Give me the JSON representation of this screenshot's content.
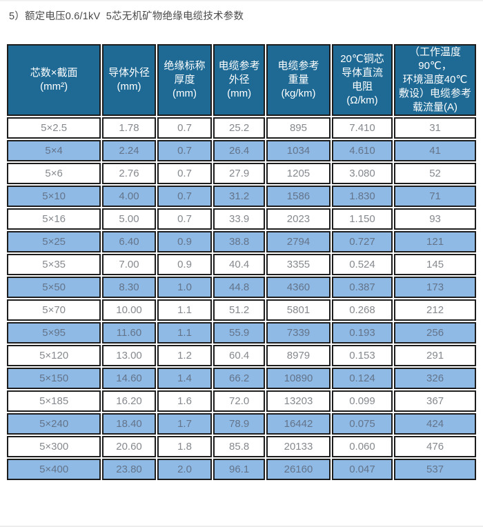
{
  "page": {
    "title": "5）额定电压0.6/1kV  5芯无机矿物绝缘电缆技术参数"
  },
  "table": {
    "columns": [
      {
        "id": "core-size",
        "label": "芯数×截面\n(mm²)"
      },
      {
        "id": "conductor-od",
        "label": "导体外径\n(mm)"
      },
      {
        "id": "insulation-thickness",
        "label": "绝缘标称\n厚度\n(mm)"
      },
      {
        "id": "cable-od",
        "label": "电缆参考\n外径\n(mm)"
      },
      {
        "id": "cable-weight",
        "label": "电缆参考\n重量\n(kg/km)"
      },
      {
        "id": "dc-resistance",
        "label": "20℃铜芯\n导体直流\n电阻\n(Ω/km)"
      },
      {
        "id": "ampacity",
        "label": "（工作温度90℃，\n环境温度40℃\n敷设）电缆参考\n载流量(A)"
      }
    ],
    "rows": [
      [
        "5×2.5",
        "1.78",
        "0.7",
        "25.2",
        "895",
        "7.410",
        "31"
      ],
      [
        "5×4",
        "2.24",
        "0.7",
        "26.4",
        "1034",
        "4.610",
        "41"
      ],
      [
        "5×6",
        "2.76",
        "0.7",
        "27.9",
        "1205",
        "3.080",
        "52"
      ],
      [
        "5×10",
        "4.00",
        "0.7",
        "31.2",
        "1586",
        "1.830",
        "71"
      ],
      [
        "5×16",
        "5.00",
        "0.7",
        "33.9",
        "2023",
        "1.150",
        "93"
      ],
      [
        "5×25",
        "6.40",
        "0.9",
        "38.8",
        "2794",
        "0.727",
        "121"
      ],
      [
        "5×35",
        "7.00",
        "0.9",
        "40.4",
        "3355",
        "0.524",
        "145"
      ],
      [
        "5×50",
        "8.30",
        "1.0",
        "44.8",
        "4360",
        "0.387",
        "173"
      ],
      [
        "5×70",
        "10.00",
        "1.1",
        "51.2",
        "5801",
        "0.268",
        "212"
      ],
      [
        "5×95",
        "11.60",
        "1.1",
        "55.9",
        "7339",
        "0.193",
        "256"
      ],
      [
        "5×120",
        "13.00",
        "1.2",
        "60.4",
        "8979",
        "0.153",
        "291"
      ],
      [
        "5×150",
        "14.60",
        "1.4",
        "66.2",
        "10890",
        "0.124",
        "326"
      ],
      [
        "5×185",
        "16.20",
        "1.6",
        "72.0",
        "13203",
        "0.099",
        "367"
      ],
      [
        "5×240",
        "18.40",
        "1.7",
        "78.9",
        "16442",
        "0.075",
        "424"
      ],
      [
        "5×300",
        "20.60",
        "1.8",
        "85.8",
        "20133",
        "0.060",
        "476"
      ],
      [
        "5×400",
        "23.80",
        "2.0",
        "96.1",
        "26160",
        "0.047",
        "537"
      ]
    ]
  },
  "colors": {
    "header_bg": "#1e6a94",
    "header_text": "#ffffff",
    "row_bg": "#ffffff",
    "row_alt_bg": "#8fbae5",
    "row_text": "#85898d",
    "row_alt_text": "#64748a",
    "border": "#1c1c1c",
    "title_text": "#4a4a4a"
  }
}
